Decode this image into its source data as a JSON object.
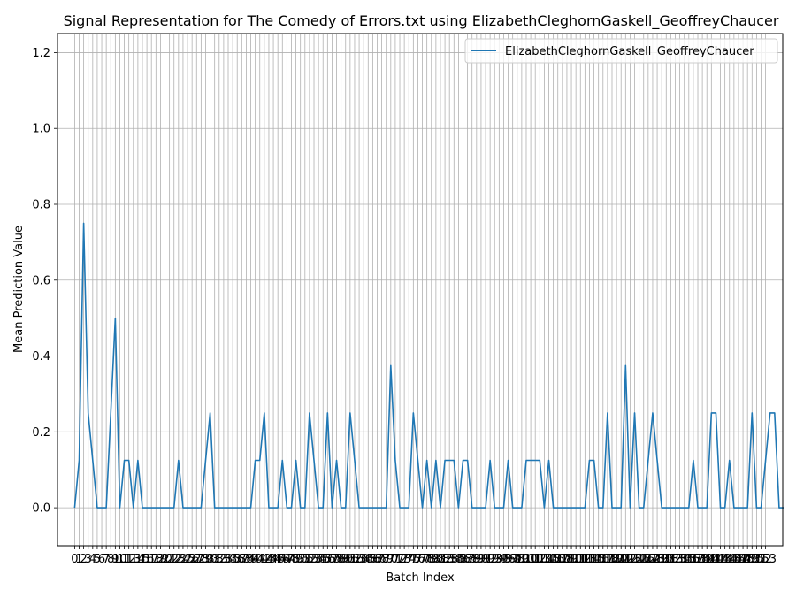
{
  "chart_data": {
    "type": "line",
    "title": "Signal Representation for The Comedy of Errors.txt using ElizabethCleghornGaskell_GeoffreyChaucer",
    "xlabel": "Batch Index",
    "ylabel": "Mean Prediction Value",
    "xlim": [
      -3.8,
      156.8
    ],
    "ylim": [
      -0.1,
      1.25
    ],
    "yticks": [
      "0.0",
      "0.2",
      "0.4",
      "0.6",
      "0.8",
      "1.0",
      "1.2"
    ],
    "xtick_count": 154,
    "grid": true,
    "legend_position": "top-right",
    "series": [
      {
        "name": "ElizabethCleghornGaskell_GeoffreyChaucer",
        "color": "#1f77b4",
        "values": [
          0,
          0.125,
          0.75,
          0.25,
          0.125,
          0,
          0,
          0,
          0.25,
          0.5,
          0,
          0.125,
          0.125,
          0,
          0.125,
          0,
          0,
          0,
          0,
          0,
          0,
          0,
          0,
          0.125,
          0,
          0,
          0,
          0,
          0,
          0.125,
          0.25,
          0,
          0,
          0,
          0,
          0,
          0,
          0,
          0,
          0,
          0.125,
          0.125,
          0.25,
          0,
          0,
          0,
          0.125,
          0,
          0,
          0.125,
          0,
          0,
          0.25,
          0.125,
          0,
          0,
          0.25,
          0,
          0.125,
          0,
          0,
          0.25,
          0.125,
          0,
          0,
          0,
          0,
          0,
          0,
          0,
          0.375,
          0.125,
          0,
          0,
          0,
          0.25,
          0.125,
          0,
          0.125,
          0,
          0.125,
          0,
          0.125,
          0.125,
          0.125,
          0,
          0.125,
          0.125,
          0,
          0,
          0,
          0,
          0.125,
          0,
          0,
          0,
          0.125,
          0,
          0,
          0,
          0.125,
          0.125,
          0.125,
          0.125,
          0,
          0.125,
          0,
          0,
          0,
          0,
          0,
          0,
          0,
          0,
          0.125,
          0.125,
          0,
          0,
          0.25,
          0,
          0,
          0,
          0.375,
          0,
          0.25,
          0,
          0,
          0.125,
          0.25,
          0.125,
          0,
          0,
          0,
          0,
          0,
          0,
          0,
          0.125,
          0,
          0,
          0,
          0.25,
          0.25,
          0,
          0,
          0.125,
          0,
          0,
          0,
          0,
          0.25,
          0,
          0,
          0.125,
          0.25,
          0.25,
          0,
          0
        ]
      }
    ]
  }
}
